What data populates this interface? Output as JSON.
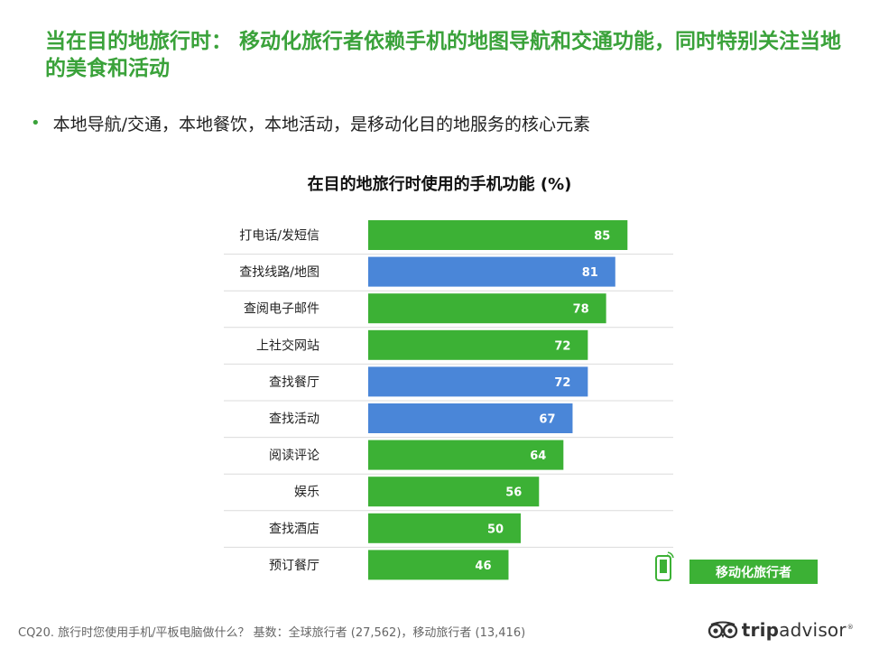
{
  "headline": "当在目的地旅行时： 移动化旅行者依赖手机的地图导航和交通功能，同时特别关注当地的美食和活动",
  "bullet": "本地导航/交通，本地餐饮，本地活动，是移动化目的地服务的核心元素",
  "chart_data": {
    "type": "bar",
    "orientation": "horizontal",
    "title": "在目的地旅行时使用的手机功能 (%)",
    "categories": [
      "打电话/发短信",
      "查找线路/地图",
      "查阅电子邮件",
      "上社交网站",
      "查找餐厅",
      "查找活动",
      "阅读评论",
      "娱乐",
      "查找酒店",
      "预订餐厅"
    ],
    "values": [
      85,
      81,
      78,
      72,
      72,
      67,
      64,
      56,
      50,
      46
    ],
    "highlighted": [
      false,
      true,
      false,
      false,
      true,
      true,
      false,
      false,
      false,
      false
    ],
    "colors": {
      "default": "#3cb135",
      "highlight": "#4a86d8"
    },
    "xlim": [
      0,
      100
    ],
    "data_labels": true,
    "grid": false,
    "legend": [
      {
        "name": "移动化旅行者",
        "color": "#3cb135"
      }
    ]
  },
  "legend": {
    "label": "移动化旅行者",
    "icon": "mobile-phone-icon"
  },
  "footnote": "CQ20. 旅行时您使用手机/平板电脑做什么？ 基数：全球旅行者 (27,562)，移动旅行者 (13,416)",
  "logo": {
    "trip": "trip",
    "advisor": "advisor",
    "mark": "®",
    "icon": "owl-eyes-icon"
  }
}
